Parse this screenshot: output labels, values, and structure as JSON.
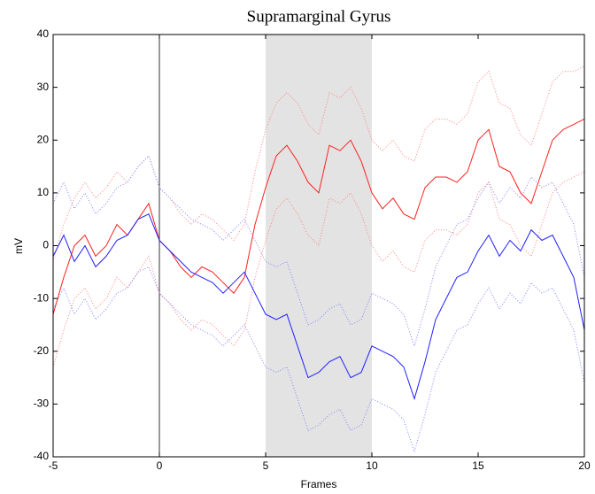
{
  "chart_data": {
    "type": "line",
    "title": "Supramarginal Gyrus",
    "xlabel": "Frames",
    "ylabel": "mV",
    "x": [
      -5,
      -4.5,
      -4,
      -3.5,
      -3,
      -2.5,
      -2,
      -1.5,
      -1,
      -0.5,
      0,
      0.5,
      1,
      1.5,
      2,
      2.5,
      3,
      3.5,
      4,
      4.5,
      5,
      5.5,
      6,
      6.5,
      7,
      7.5,
      8,
      8.5,
      9,
      9.5,
      10,
      10.5,
      11,
      11.5,
      12,
      12.5,
      13,
      13.5,
      14,
      14.5,
      15,
      15.5,
      16,
      16.5,
      17,
      17.5,
      18,
      18.5,
      19,
      19.5,
      20
    ],
    "series": [
      {
        "color": "#ff8080",
        "style": "dotted",
        "values": [
          -3,
          4,
          9,
          12,
          9,
          11,
          14,
          12,
          15,
          17,
          11,
          9,
          6,
          4,
          6,
          5,
          3,
          1,
          4,
          14,
          22,
          27,
          29,
          27,
          23,
          21,
          29,
          28,
          30,
          26,
          20,
          18,
          20,
          17,
          16,
          22,
          24,
          24,
          23,
          25,
          31,
          33,
          27,
          26,
          21,
          19,
          25,
          31,
          33,
          33,
          34
        ]
      },
      {
        "color": "#ff8080",
        "style": "dotted",
        "values": [
          -23,
          -16,
          -10,
          -8,
          -12,
          -10,
          -6,
          -8,
          -5,
          -2,
          -9,
          -11,
          -14,
          -16,
          -14,
          -15,
          -17,
          -19,
          -16,
          -6,
          1,
          7,
          9,
          6,
          2,
          0,
          9,
          8,
          10,
          6,
          0,
          -3,
          -1,
          -4,
          -5,
          1,
          3,
          3,
          2,
          4,
          10,
          12,
          5,
          4,
          0,
          -2,
          4,
          10,
          12,
          13,
          14
        ]
      },
      {
        "color": "#8080ff",
        "style": "dotted",
        "values": [
          8,
          12,
          7,
          10,
          6,
          8,
          11,
          12,
          15,
          17,
          11,
          9,
          7,
          5,
          4,
          3,
          1,
          3,
          5,
          1,
          -3,
          -4,
          -3,
          -9,
          -15,
          -14,
          -12,
          -11,
          -15,
          -14,
          -9,
          -10,
          -11,
          -13,
          -19,
          -12,
          -4,
          0,
          4,
          5,
          9,
          12,
          8,
          11,
          9,
          13,
          11,
          12,
          8,
          4,
          -6
        ]
      },
      {
        "color": "#8080ff",
        "style": "dotted",
        "values": [
          -12,
          -8,
          -13,
          -10,
          -14,
          -12,
          -9,
          -8,
          -5,
          -4,
          -9,
          -11,
          -13,
          -15,
          -16,
          -17,
          -19,
          -17,
          -15,
          -19,
          -23,
          -24,
          -23,
          -29,
          -35,
          -34,
          -32,
          -31,
          -35,
          -34,
          -29,
          -30,
          -31,
          -33,
          -39,
          -32,
          -24,
          -20,
          -16,
          -15,
          -11,
          -8,
          -12,
          -9,
          -11,
          -7,
          -9,
          -8,
          -12,
          -16,
          -26
        ]
      },
      {
        "color": "#ff2020",
        "style": "solid",
        "values": [
          -13,
          -6,
          0,
          2,
          -2,
          0,
          4,
          2,
          5,
          8,
          1,
          -1,
          -4,
          -6,
          -4,
          -5,
          -7,
          -9,
          -6,
          4,
          11,
          17,
          19,
          16,
          12,
          10,
          19,
          18,
          20,
          16,
          10,
          7,
          9,
          6,
          5,
          11,
          13,
          13,
          12,
          14,
          20,
          22,
          15,
          14,
          10,
          8,
          14,
          20,
          22,
          23,
          24
        ]
      },
      {
        "color": "#2020ff",
        "style": "solid",
        "values": [
          -2,
          2,
          -3,
          0,
          -4,
          -2,
          1,
          2,
          5,
          6,
          1,
          -1,
          -3,
          -5,
          -6,
          -7,
          -9,
          -7,
          -5,
          -9,
          -13,
          -14,
          -13,
          -19,
          -25,
          -24,
          -22,
          -21,
          -25,
          -24,
          -19,
          -20,
          -21,
          -23,
          -29,
          -22,
          -14,
          -10,
          -6,
          -5,
          -1,
          2,
          -2,
          1,
          -1,
          3,
          1,
          2,
          -2,
          -6,
          -16
        ]
      }
    ],
    "xlim": [
      -5,
      20
    ],
    "ylim": [
      -40,
      40
    ],
    "xticks": [
      -5,
      0,
      5,
      10,
      15,
      20
    ],
    "yticks": [
      -40,
      -30,
      -20,
      -10,
      0,
      10,
      20,
      30,
      40
    ],
    "shade": [
      5,
      10
    ],
    "shade_color": "#e3e3e3",
    "vline": 0
  }
}
